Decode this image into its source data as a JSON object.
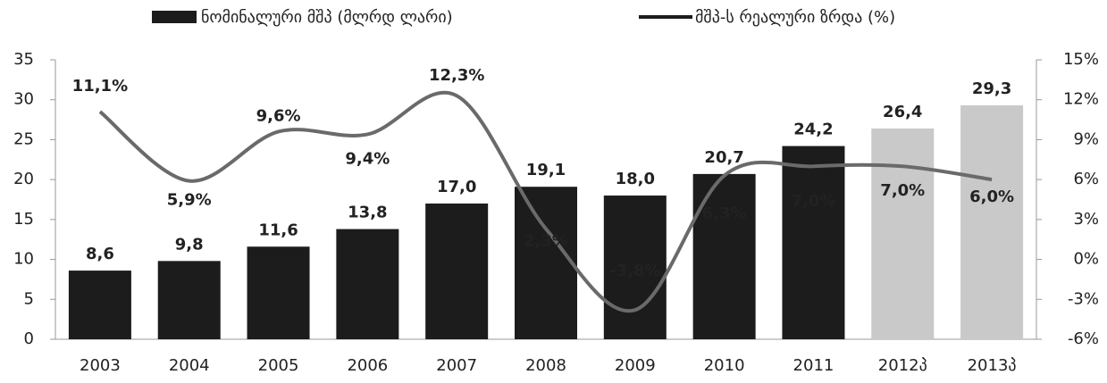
{
  "chart_data": {
    "type": "bar+line",
    "categories": [
      "2003",
      "2004",
      "2005",
      "2006",
      "2007",
      "2008",
      "2009",
      "2010",
      "2011",
      "2012პ",
      "2013პ"
    ],
    "series": [
      {
        "name": "ნომინალური მშპ (მლრდ ლარი)",
        "type": "bar",
        "color": "#1c1c1c",
        "colors": [
          "#1c1c1c",
          "#1c1c1c",
          "#1c1c1c",
          "#1c1c1c",
          "#1c1c1c",
          "#1c1c1c",
          "#1c1c1c",
          "#1c1c1c",
          "#1c1c1c",
          "#c9c9c9",
          "#c9c9c9"
        ],
        "values": [
          8.6,
          9.8,
          11.6,
          13.8,
          17.0,
          19.1,
          18.0,
          20.7,
          24.2,
          26.4,
          29.3
        ],
        "value_labels": [
          "8,6",
          "9,8",
          "11,6",
          "13,8",
          "17,0",
          "19,1",
          "18,0",
          "20,7",
          "24,2",
          "26,4",
          "29,3"
        ]
      },
      {
        "name": "მშპ-ს რეალური ზრდა (%)",
        "type": "line",
        "axis": "y2",
        "color": "#6a6a6a",
        "values": [
          11.1,
          5.9,
          9.6,
          9.4,
          12.3,
          2.3,
          -3.8,
          6.3,
          7.0,
          7.0,
          6.0
        ],
        "value_labels": [
          "11,1%",
          "5,9%",
          "9,6%",
          "9,4%",
          "12,3%",
          "2,3%",
          "-3,8%",
          "6,3%",
          "7,0%",
          "7,0%",
          "6,0%"
        ]
      }
    ],
    "ylim": [
      0,
      35
    ],
    "yticks": [
      0,
      5,
      10,
      15,
      20,
      25,
      30,
      35
    ],
    "y2lim": [
      -6,
      15
    ],
    "y2ticks": [
      {
        "value": -6,
        "label": "-6%"
      },
      {
        "value": -3,
        "label": "-3%"
      },
      {
        "value": 0,
        "label": "0%"
      },
      {
        "value": 3,
        "label": "3%"
      },
      {
        "value": 6,
        "label": "6%"
      },
      {
        "value": 9,
        "label": "9%"
      },
      {
        "value": 12,
        "label": "12%"
      },
      {
        "value": 15,
        "label": "15%"
      }
    ],
    "legend": "top"
  }
}
